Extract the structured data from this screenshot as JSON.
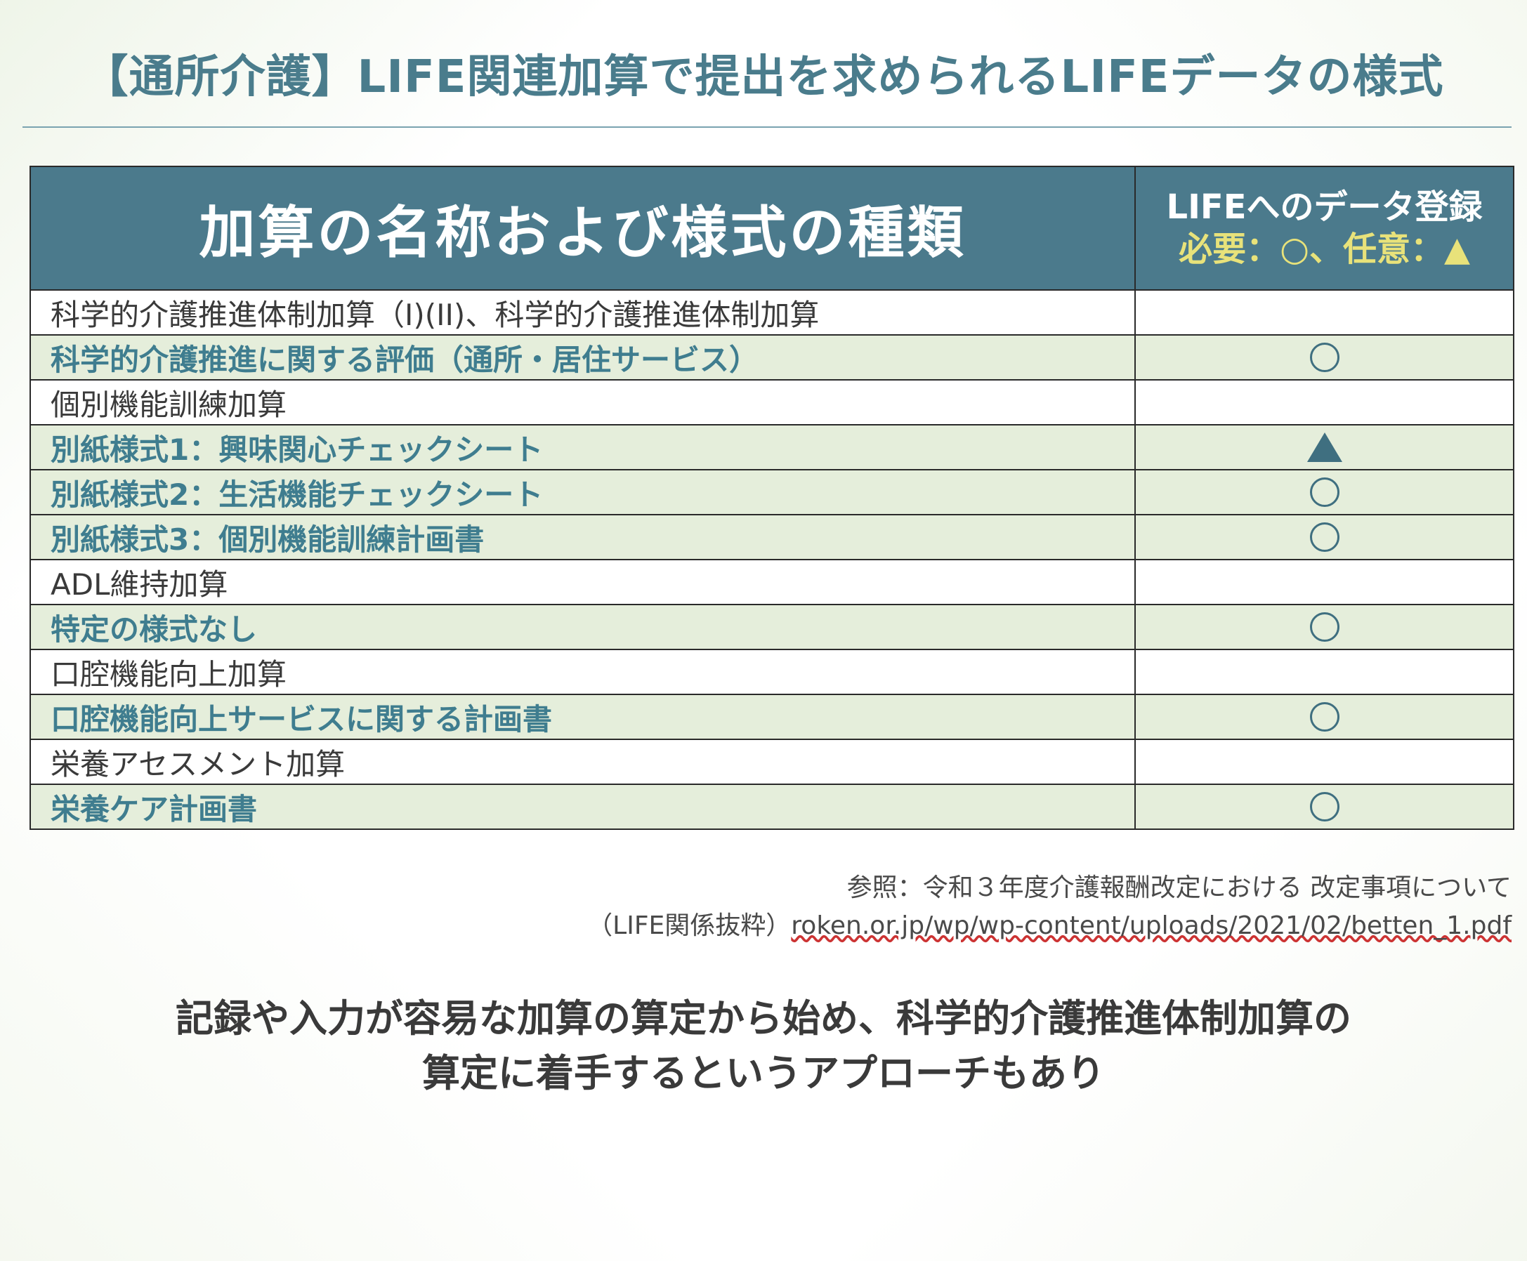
{
  "title": "【通所介護】LIFE関連加算で提出を求められるLIFEデータの様式",
  "table": {
    "header_main": "加算の名称および様式の種類",
    "header_side_line1": "LIFEへのデータ登録",
    "header_side_line2": "必要：○、任意：▲",
    "rows": [
      {
        "name": "科学的介護推進体制加算（I)(II)、科学的介護推進体制加算",
        "type": "plain",
        "mark": ""
      },
      {
        "name": "科学的介護推進に関する評価（通所・居住サービス）",
        "type": "sub",
        "mark": "circle"
      },
      {
        "name": "個別機能訓練加算",
        "type": "plain",
        "mark": ""
      },
      {
        "name": "別紙様式1：興味関心チェックシート",
        "type": "sub",
        "mark": "triangle"
      },
      {
        "name": "別紙様式2：生活機能チェックシート",
        "type": "sub",
        "mark": "circle"
      },
      {
        "name": "別紙様式3：個別機能訓練計画書",
        "type": "sub",
        "mark": "circle"
      },
      {
        "name": "ADL維持加算",
        "type": "plain",
        "mark": ""
      },
      {
        "name": "特定の様式なし",
        "type": "sub",
        "mark": "circle"
      },
      {
        "name": "口腔機能向上加算",
        "type": "plain",
        "mark": ""
      },
      {
        "name": "口腔機能向上サービスに関する計画書",
        "type": "sub",
        "mark": "circle"
      },
      {
        "name": "栄養アセスメント加算",
        "type": "plain",
        "mark": ""
      },
      {
        "name": "栄養ケア計画書",
        "type": "sub",
        "mark": "circle"
      }
    ]
  },
  "reference": {
    "line1": "参照：令和３年度介護報酬改定における 改定事項について",
    "line2_prefix": "（LIFE関係抜粋）",
    "line2_link": "roken.or.jp/wp/wp-content/uploads/2021/02/betten_1.pdf"
  },
  "summary": {
    "line1": "記録や入力が容易な加算の算定から始め、科学的介護推進体制加算の",
    "line2": "算定に着手するというアプローチもあり"
  },
  "colors": {
    "accent": "#4b7a8c",
    "title": "#4a7c8c",
    "sub_row_bg": "#e5eedb",
    "header_note": "#e8e27a"
  }
}
